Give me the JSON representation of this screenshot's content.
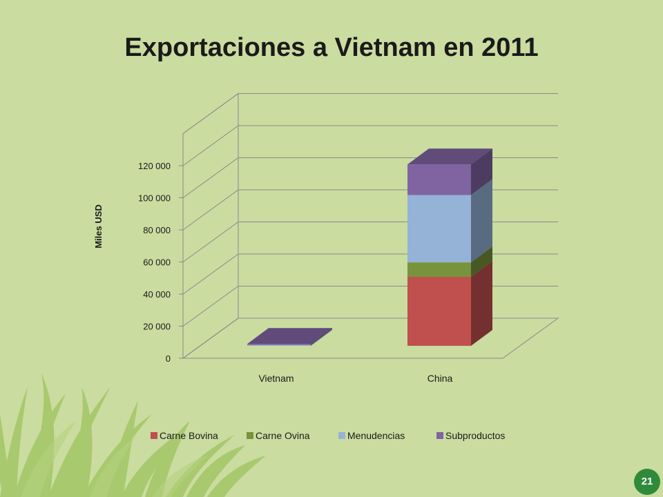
{
  "slide": {
    "title": "Exportaciones a Vietnam en 2011",
    "page_number": "21"
  },
  "colors": {
    "background": "#cadca0",
    "grass": "#9cc25a",
    "badge": "#2f8b3a"
  },
  "chart_data": {
    "type": "bar",
    "stacked": true,
    "three_d": true,
    "title": "",
    "ylabel": "Miles USD",
    "xlabel": "",
    "ylim": [
      0,
      140000
    ],
    "y_ticks": [
      0,
      20000,
      40000,
      60000,
      80000,
      100000,
      120000
    ],
    "y_tick_labels": [
      "0",
      "20 000",
      "40 000",
      "60 000",
      "80 000",
      "100 000",
      "120 000"
    ],
    "categories": [
      "Vietnam",
      "China"
    ],
    "series": [
      {
        "name": "Carne Bovina",
        "color": "#c0504d",
        "values": [
          0,
          43000
        ]
      },
      {
        "name": "Carne Ovina",
        "color": "#77933c",
        "values": [
          0,
          9000
        ]
      },
      {
        "name": "Menudencias",
        "color": "#95b3d7",
        "values": [
          500,
          42000
        ]
      },
      {
        "name": "Subproductos",
        "color": "#8064a2",
        "values": [
          700,
          19000
        ]
      }
    ],
    "grid": true,
    "legend_position": "bottom"
  }
}
